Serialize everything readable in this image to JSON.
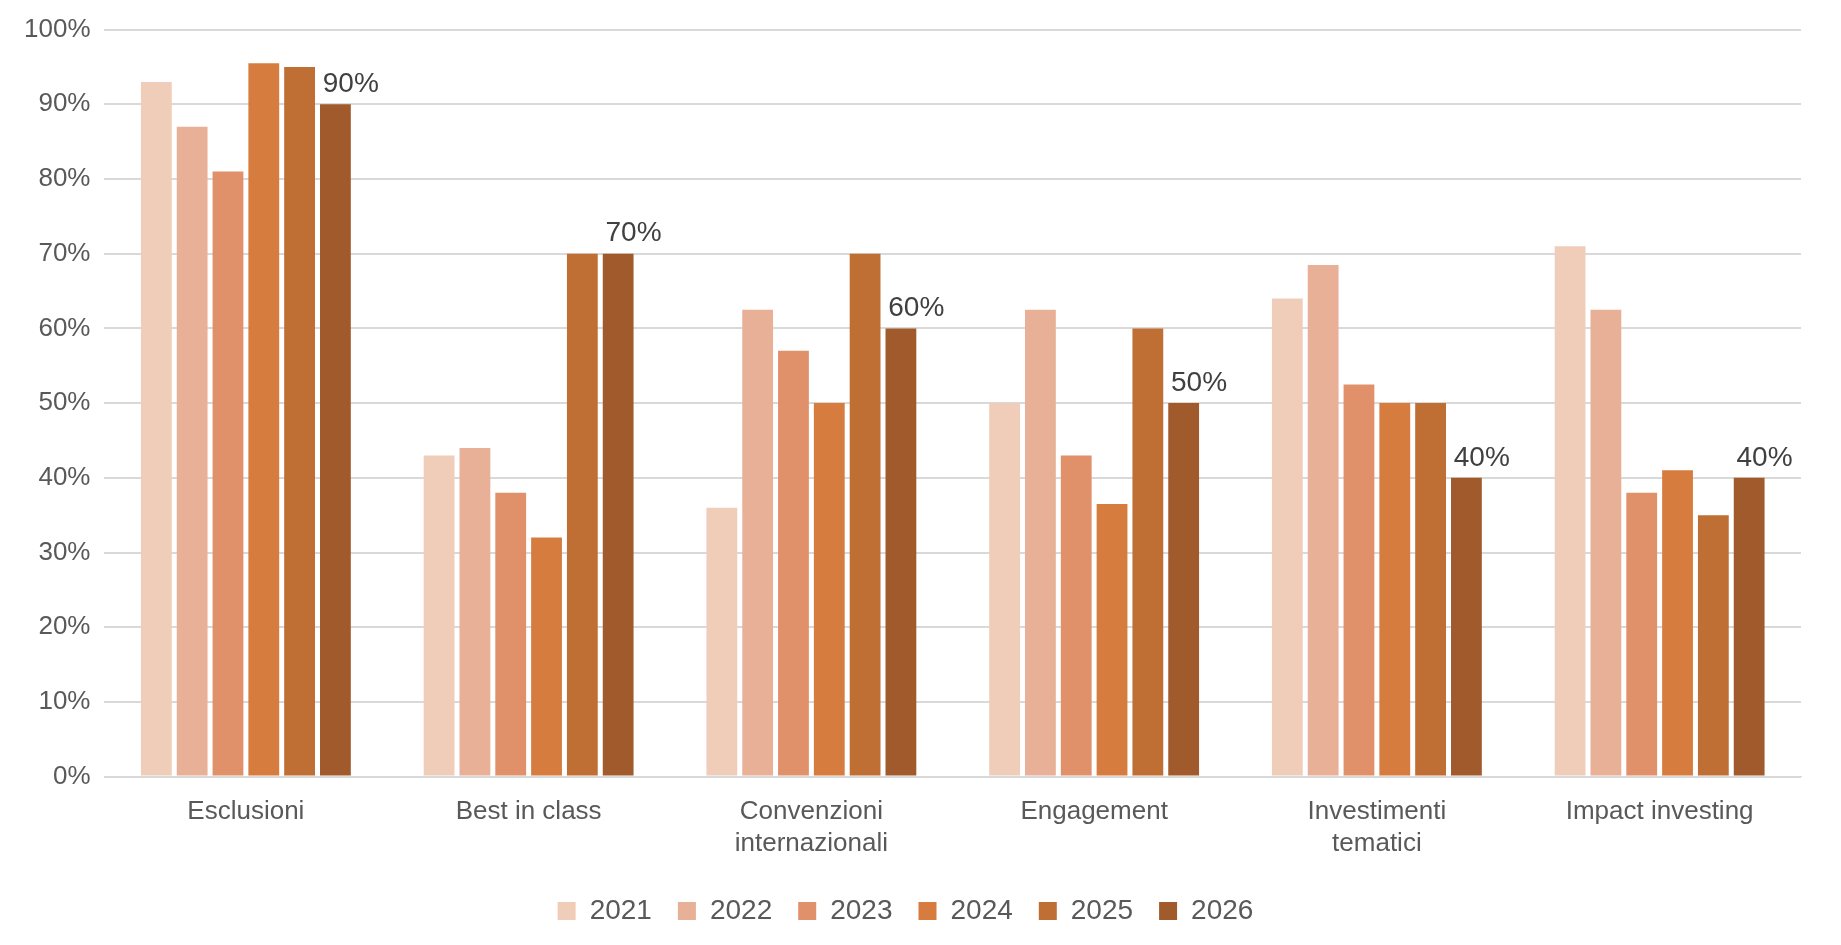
{
  "chart_data": {
    "type": "bar",
    "categories": [
      "Esclusioni",
      "Best in class",
      "Convenzioni\ninternazionali",
      "Engagement",
      "Investimenti\ntematici",
      "Impact investing"
    ],
    "series": [
      {
        "name": "2021",
        "color": "#f0cdb9",
        "values": [
          93,
          43,
          36,
          50,
          64,
          71
        ]
      },
      {
        "name": "2022",
        "color": "#e8b096",
        "values": [
          87,
          44,
          62.5,
          62.5,
          68.5,
          62.5
        ]
      },
      {
        "name": "2023",
        "color": "#e0916a",
        "values": [
          81,
          38,
          57,
          43,
          52.5,
          38
        ]
      },
      {
        "name": "2024",
        "color": "#d67c3e",
        "values": [
          95.5,
          32,
          50,
          36.5,
          50,
          41
        ]
      },
      {
        "name": "2025",
        "color": "#bf6e34",
        "values": [
          95,
          70,
          70,
          60,
          50,
          35
        ]
      },
      {
        "name": "2026",
        "color": "#a05a2c",
        "values": [
          90,
          70,
          60,
          50,
          40,
          40
        ],
        "value_labels": [
          "90%",
          "70%",
          "60%",
          "50%",
          "40%",
          "40%"
        ]
      }
    ],
    "ylim": [
      0,
      100
    ],
    "yticks": [
      {
        "value": 0,
        "label": "0%"
      },
      {
        "value": 10,
        "label": "10%"
      },
      {
        "value": 20,
        "label": "20%"
      },
      {
        "value": 30,
        "label": "30%"
      },
      {
        "value": 40,
        "label": "40%"
      },
      {
        "value": 50,
        "label": "50%"
      },
      {
        "value": 60,
        "label": "60%"
      },
      {
        "value": 70,
        "label": "70%"
      },
      {
        "value": 80,
        "label": "80%"
      },
      {
        "value": 90,
        "label": "90%"
      },
      {
        "value": 100,
        "label": "100%"
      }
    ],
    "grid": "y",
    "legend": "bottom"
  }
}
